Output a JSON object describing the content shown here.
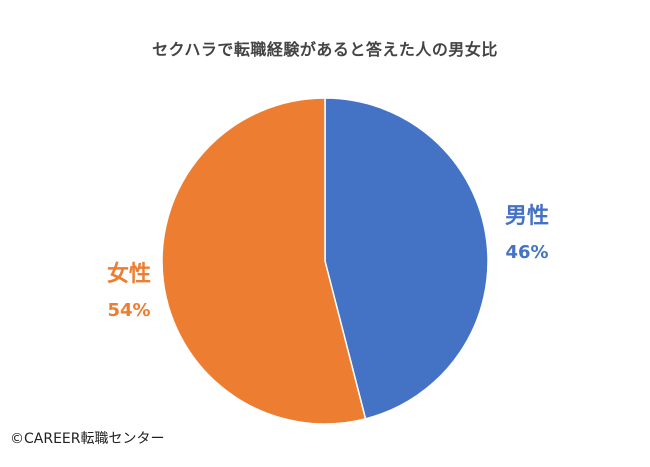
{
  "chart_data": {
    "type": "pie",
    "title": "セクハラで転職経験があると答えた人の男女比",
    "categories": [
      "男性",
      "女性"
    ],
    "values": [
      46,
      54
    ],
    "value_labels": [
      "46%",
      "54%"
    ],
    "colors": [
      "#4472C4",
      "#ED7D31"
    ],
    "start": "12 o'clock",
    "direction": "clockwise",
    "legend": "none"
  },
  "footer": {
    "credit": "©CAREER転職センター"
  }
}
